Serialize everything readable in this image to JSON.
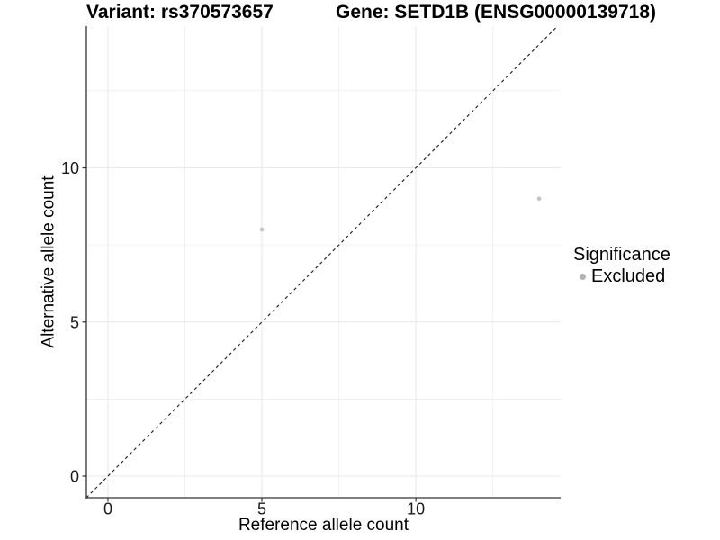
{
  "titles": {
    "variant": "Variant: rs370573657",
    "gene": "Gene: SETD1B (ENSG00000139718)"
  },
  "chart_data": {
    "type": "scatter",
    "title_left": "Variant: rs370573657",
    "title_right": "Gene: SETD1B (ENSG00000139718)",
    "xlabel": "Reference allele count",
    "ylabel": "Alternative allele count",
    "xlim": [
      -0.7,
      14.7
    ],
    "ylim": [
      -0.7,
      14.6
    ],
    "x_ticks": [
      0,
      5,
      10
    ],
    "y_ticks": [
      0,
      5,
      10
    ],
    "x_minor_gridlines": [
      2.5,
      7.5,
      12.5
    ],
    "y_minor_gridlines": [
      2.5,
      7.5,
      12.5
    ],
    "grid": "on",
    "legend_position": "right",
    "points": [
      {
        "x": 5,
        "y": 8,
        "series": "Excluded"
      },
      {
        "x": 14,
        "y": 9,
        "series": "Excluded"
      }
    ],
    "reference_line": {
      "type": "identity",
      "slope": 1,
      "intercept": 0,
      "style": "dashed"
    },
    "legend": {
      "title": "Significance",
      "entries": [
        {
          "label": "Excluded",
          "color": "#b3b3b3"
        }
      ]
    },
    "colors": {
      "point": "#c3c3c3",
      "legend_point": "#b3b3b3",
      "grid_major": "#e8e8e8",
      "grid_minor": "#f0f0f0",
      "axis_line": "#333333",
      "tick_label": "#1a1a1a",
      "dashed_line": "#1a1a1a"
    }
  }
}
